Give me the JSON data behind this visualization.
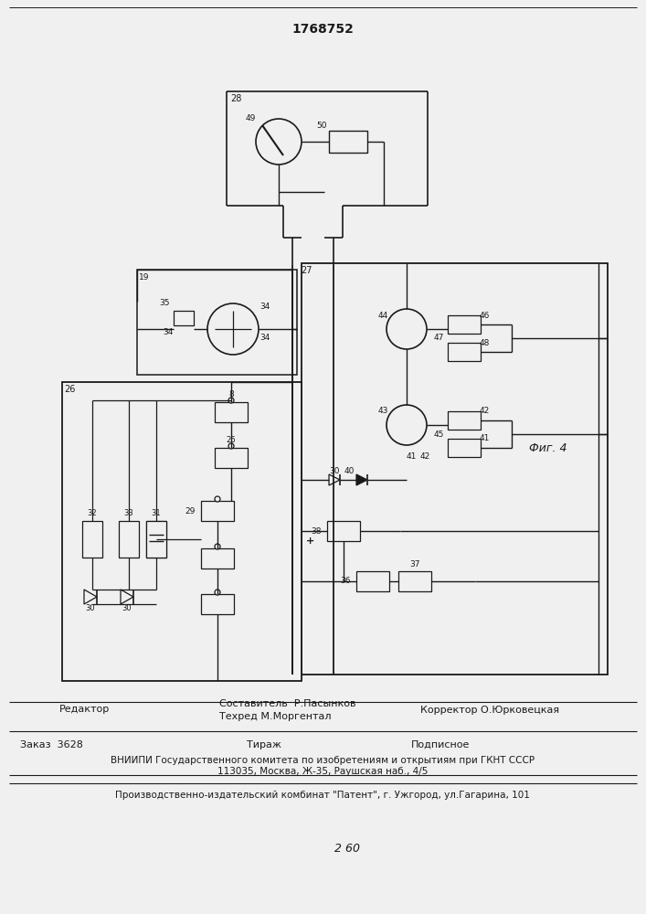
{
  "title": "1768752",
  "fig_label": "Фиг. 4",
  "editor_label": "Редактор",
  "composer_line1": "Составитель  Р.Пасынков",
  "composer_line2": "Техред М.Моргентал",
  "corrector_line": "Корректор О.Юрковецкая",
  "order_text": "Заказ  3628",
  "tirazh_text": "Тираж",
  "podpisnoe_text": "Подписное",
  "vniipи_line": "ВНИИПИ Государственного комитета по изобретениям и открытиям при ГКНТ СССР",
  "address_line": "113035, Москва, Ж-35, Раушская наб., 4/5",
  "publisher_line": "Производственно-издательский комбинат \"Патент\", г. Ужгород, ул.Гагарина, 101",
  "bg_color": "#f0f0f0",
  "line_color": "#1a1a1a",
  "text_color": "#1a1a1a"
}
